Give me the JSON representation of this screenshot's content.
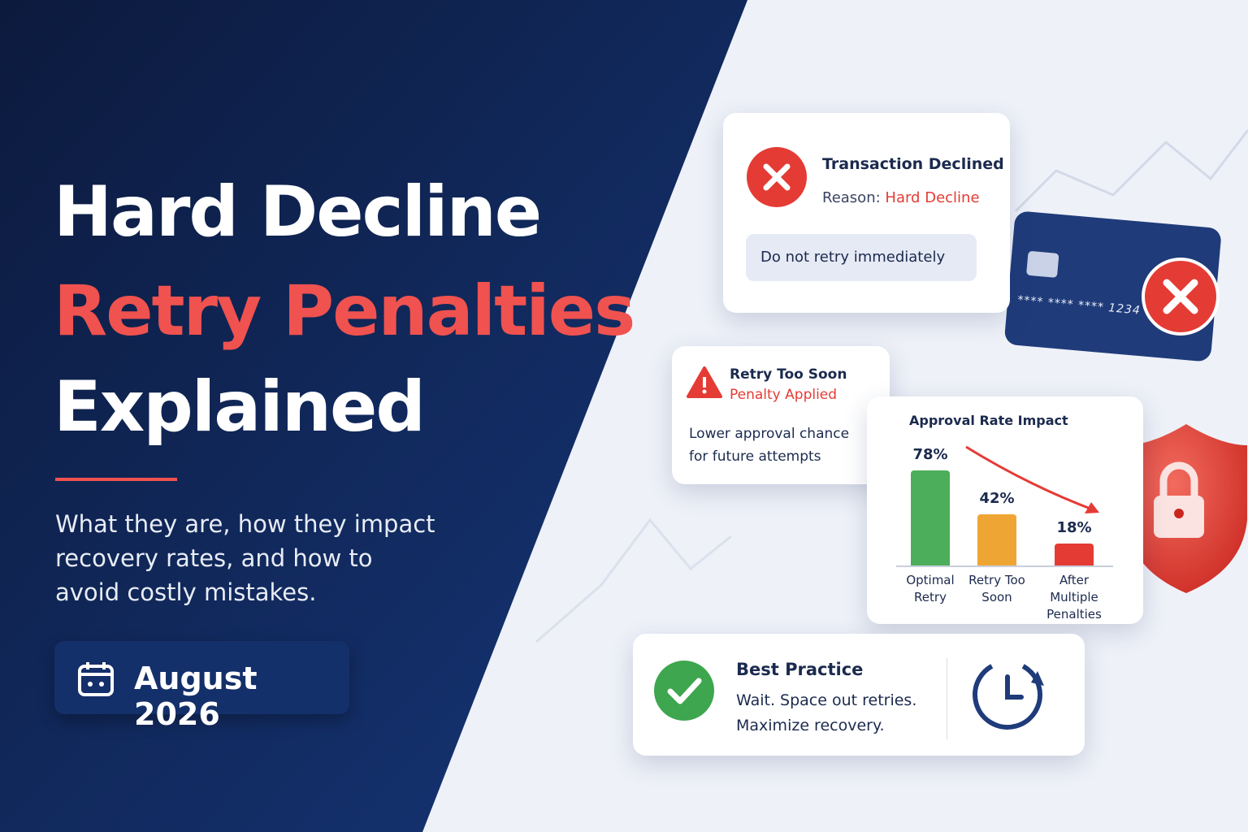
{
  "header": {
    "title_line1": "Hard Decline",
    "title_line2": "Retry Penalties",
    "title_line3": "Explained",
    "subtitle": "What they are, how they impact recovery rates, and how to avoid costly mistakes.",
    "date": "August 2026"
  },
  "decline_card": {
    "title": "Transaction Declined",
    "reason_label": "Reason:",
    "reason": "Hard Decline",
    "note": "Do not retry immediately"
  },
  "credit_card": {
    "number": "**** **** **** 1234"
  },
  "penalty_card": {
    "title": "Retry Too Soon",
    "status": "Penalty Applied",
    "text": "Lower approval chance for future attempts"
  },
  "chart_data": {
    "type": "bar",
    "title": "Approval Rate Impact",
    "categories": [
      "Optimal Retry",
      "Retry Too Soon",
      "After Multiple Penalties"
    ],
    "values": [
      78,
      42,
      18
    ],
    "value_labels": [
      "78%",
      "42%",
      "18%"
    ],
    "colors": [
      "#4cae5a",
      "#efa534",
      "#e53b35"
    ]
  },
  "best_practice": {
    "title": "Best Practice",
    "line1": "Wait. Space out retries.",
    "line2": "Maximize recovery."
  }
}
